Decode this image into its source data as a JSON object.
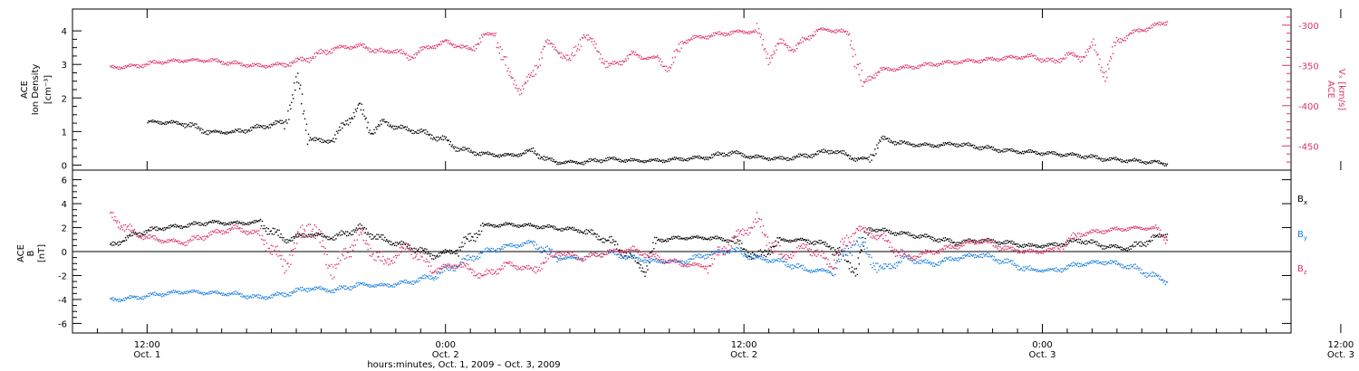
{
  "chart_data": [
    {
      "type": "scatter",
      "panel": "top",
      "left_axis": {
        "label_lines": [
          "ACE",
          "Ion Density"
        ],
        "unit": "[cm⁻³]",
        "ticks": [
          "0",
          "1",
          "2",
          "3",
          "4"
        ],
        "ylim": [
          -0.15,
          4.65
        ],
        "color": "#000000"
      },
      "right_axis": {
        "label_line1": "ACE",
        "label_line2": "Vₓ [km/s]",
        "ticks": [
          "-300",
          "-350",
          "-400",
          "-450"
        ],
        "ylim": [
          -480,
          -280
        ],
        "color": "#dd3366"
      },
      "series": [
        {
          "axis": "left",
          "color": "#000000",
          "points": [
            [
              3.0,
              1.3
            ],
            [
              4.0,
              1.3
            ],
            [
              6.0,
              1.25
            ],
            [
              8.0,
              1.0
            ],
            [
              10.0,
              1.0
            ],
            [
              12.0,
              1.15
            ],
            [
              14.0,
              1.3
            ],
            [
              15.0,
              2.5
            ],
            [
              16.0,
              0.85
            ],
            [
              17.0,
              0.7
            ],
            [
              18.0,
              0.8
            ],
            [
              19.0,
              1.3
            ],
            [
              20.0,
              1.75
            ],
            [
              21.0,
              1.0
            ],
            [
              22.0,
              1.3
            ],
            [
              23.0,
              1.15
            ],
            [
              25.0,
              1.0
            ],
            [
              27.0,
              0.75
            ],
            [
              28.0,
              0.5
            ],
            [
              30.0,
              0.35
            ],
            [
              32.0,
              0.3
            ],
            [
              33.0,
              0.35
            ],
            [
              34.0,
              0.45
            ],
            [
              35.0,
              0.2
            ],
            [
              36.0,
              0.1
            ],
            [
              38.0,
              0.1
            ],
            [
              40.0,
              0.2
            ],
            [
              42.0,
              0.15
            ],
            [
              44.0,
              0.15
            ],
            [
              46.0,
              0.2
            ],
            [
              48.0,
              0.25
            ],
            [
              50.0,
              0.4
            ],
            [
              51.0,
              0.3
            ],
            [
              52.0,
              0.25
            ],
            [
              54.0,
              0.2
            ],
            [
              56.0,
              0.3
            ],
            [
              58.0,
              0.45
            ],
            [
              59.0,
              0.35
            ],
            [
              60.0,
              0.2
            ],
            [
              61.0,
              0.2
            ],
            [
              62.0,
              0.8
            ],
            [
              64.0,
              0.65
            ],
            [
              66.0,
              0.6
            ],
            [
              68.0,
              0.65
            ],
            [
              70.0,
              0.55
            ],
            [
              72.0,
              0.45
            ],
            [
              74.0,
              0.4
            ],
            [
              76.0,
              0.35
            ],
            [
              78.0,
              0.3
            ],
            [
              80.0,
              0.2
            ],
            [
              82.0,
              0.15
            ],
            [
              84.0,
              0.1
            ],
            [
              85.0,
              0.05
            ]
          ]
        },
        {
          "axis": "right",
          "color": "#dd3366",
          "points": [
            [
              0.0,
              -352
            ],
            [
              2.0,
              -350
            ],
            [
              4.0,
              -345
            ],
            [
              6.0,
              -343
            ],
            [
              8.0,
              -343
            ],
            [
              10.0,
              -347
            ],
            [
              12.0,
              -350
            ],
            [
              14.0,
              -348
            ],
            [
              16.0,
              -340
            ],
            [
              18.0,
              -328
            ],
            [
              20.0,
              -325
            ],
            [
              22.0,
              -333
            ],
            [
              23.0,
              -330
            ],
            [
              24.0,
              -340
            ],
            [
              25.0,
              -330
            ],
            [
              26.0,
              -325
            ],
            [
              27.0,
              -320
            ],
            [
              28.0,
              -325
            ],
            [
              29.0,
              -330
            ],
            [
              30.0,
              -312
            ],
            [
              31.0,
              -310
            ],
            [
              32.0,
              -360
            ],
            [
              33.0,
              -380
            ],
            [
              34.0,
              -360
            ],
            [
              35.0,
              -320
            ],
            [
              36.0,
              -330
            ],
            [
              37.0,
              -345
            ],
            [
              38.0,
              -310
            ],
            [
              39.0,
              -325
            ],
            [
              40.0,
              -350
            ],
            [
              41.0,
              -345
            ],
            [
              42.0,
              -335
            ],
            [
              43.0,
              -340
            ],
            [
              44.0,
              -340
            ],
            [
              45.0,
              -355
            ],
            [
              46.0,
              -320
            ],
            [
              47.0,
              -315
            ],
            [
              48.0,
              -313
            ],
            [
              50.0,
              -308
            ],
            [
              52.0,
              -307
            ],
            [
              53.0,
              -340
            ],
            [
              54.0,
              -320
            ],
            [
              55.0,
              -330
            ],
            [
              56.0,
              -315
            ],
            [
              57.0,
              -305
            ],
            [
              58.0,
              -305
            ],
            [
              59.5,
              -310
            ],
            [
              60.5,
              -375
            ],
            [
              61.0,
              -365
            ],
            [
              62.0,
              -355
            ],
            [
              64.0,
              -352
            ],
            [
              66.0,
              -348
            ],
            [
              68.0,
              -345
            ],
            [
              70.0,
              -343
            ],
            [
              72.0,
              -340
            ],
            [
              74.0,
              -338
            ],
            [
              76.0,
              -345
            ],
            [
              77.0,
              -335
            ],
            [
              78.0,
              -340
            ],
            [
              79.0,
              -325
            ],
            [
              80.0,
              -360
            ],
            [
              81.0,
              -320
            ],
            [
              82.0,
              -310
            ],
            [
              83.0,
              -305
            ],
            [
              84.0,
              -300
            ],
            [
              85.0,
              -295
            ]
          ]
        }
      ],
      "xlim": [
        -3,
        95
      ]
    },
    {
      "type": "scatter",
      "panel": "bottom",
      "left_axis": {
        "label_line1": "ACE",
        "label_line2": "B",
        "unit": "[nT]",
        "ticks": [
          "-6",
          "-4",
          "-2",
          "0",
          "2",
          "4",
          "6"
        ],
        "ylim": [
          -6.8,
          6.8
        ],
        "color": "#000000"
      },
      "series": [
        {
          "name": "Bₓ",
          "color": "#000000",
          "points": [
            [
              0.0,
              0.5
            ],
            [
              1.0,
              1.0
            ],
            [
              2.0,
              1.5
            ],
            [
              4.0,
              2.0
            ],
            [
              6.0,
              2.2
            ],
            [
              8.0,
              2.5
            ],
            [
              10.0,
              2.4
            ],
            [
              12.0,
              2.5
            ],
            [
              14.0,
              1.0
            ],
            [
              16.0,
              1.5
            ],
            [
              18.0,
              1.2
            ],
            [
              20.0,
              2.0
            ],
            [
              22.0,
              1.0
            ],
            [
              24.0,
              0.5
            ],
            [
              26.0,
              -0.3
            ],
            [
              28.0,
              0.2
            ],
            [
              30.0,
              2.2
            ],
            [
              32.0,
              2.3
            ],
            [
              34.0,
              2.2
            ],
            [
              36.0,
              2.0
            ],
            [
              38.0,
              1.8
            ],
            [
              40.0,
              1.0
            ],
            [
              42.0,
              -0.5
            ],
            [
              43.0,
              -1.5
            ],
            [
              44.0,
              1.0
            ],
            [
              46.0,
              1.2
            ],
            [
              48.0,
              1.2
            ],
            [
              50.0,
              1.0
            ],
            [
              52.0,
              -0.5
            ],
            [
              54.0,
              1.0
            ],
            [
              56.0,
              1.0
            ],
            [
              58.0,
              0.5
            ],
            [
              60.0,
              -1.5
            ],
            [
              61.0,
              2.0
            ],
            [
              62.0,
              1.8
            ],
            [
              64.0,
              1.5
            ],
            [
              66.0,
              1.2
            ],
            [
              68.0,
              0.8
            ],
            [
              70.0,
              1.0
            ],
            [
              72.0,
              0.8
            ],
            [
              74.0,
              0.5
            ],
            [
              76.0,
              0.6
            ],
            [
              78.0,
              1.0
            ],
            [
              80.0,
              0.5
            ],
            [
              82.0,
              0.3
            ],
            [
              84.0,
              1.2
            ],
            [
              85.0,
              1.5
            ]
          ]
        },
        {
          "name": "Bᵧ",
          "color": "#1a7fdd",
          "points": [
            [
              0.0,
              -4.0
            ],
            [
              2.0,
              -3.8
            ],
            [
              4.0,
              -3.5
            ],
            [
              6.0,
              -3.3
            ],
            [
              8.0,
              -3.4
            ],
            [
              10.0,
              -3.5
            ],
            [
              12.0,
              -3.8
            ],
            [
              14.0,
              -3.5
            ],
            [
              16.0,
              -3.0
            ],
            [
              18.0,
              -3.2
            ],
            [
              20.0,
              -2.7
            ],
            [
              22.0,
              -2.8
            ],
            [
              24.0,
              -2.5
            ],
            [
              26.0,
              -2.0
            ],
            [
              28.0,
              -1.0
            ],
            [
              30.0,
              0.0
            ],
            [
              32.0,
              0.5
            ],
            [
              34.0,
              0.8
            ],
            [
              36.0,
              -0.5
            ],
            [
              38.0,
              -0.5
            ],
            [
              40.0,
              0.0
            ],
            [
              42.0,
              -0.5
            ],
            [
              44.0,
              -0.8
            ],
            [
              46.0,
              -0.8
            ],
            [
              48.0,
              -0.2
            ],
            [
              50.0,
              0.2
            ],
            [
              52.0,
              -0.5
            ],
            [
              54.0,
              -0.8
            ],
            [
              56.0,
              -1.5
            ],
            [
              58.0,
              -1.6
            ],
            [
              60.0,
              1.0
            ],
            [
              62.0,
              -1.5
            ],
            [
              64.0,
              -0.5
            ],
            [
              66.0,
              -1.0
            ],
            [
              68.0,
              -0.5
            ],
            [
              70.0,
              -0.2
            ],
            [
              72.0,
              -0.8
            ],
            [
              74.0,
              -1.5
            ],
            [
              76.0,
              -1.5
            ],
            [
              78.0,
              -1.0
            ],
            [
              80.0,
              -0.8
            ],
            [
              82.0,
              -1.2
            ],
            [
              84.0,
              -2.0
            ],
            [
              85.0,
              -2.5
            ]
          ]
        },
        {
          "name": "Bᶻ",
          "color": "#dd3366",
          "points": [
            [
              0.0,
              3.0
            ],
            [
              2.0,
              1.5
            ],
            [
              4.0,
              1.0
            ],
            [
              6.0,
              0.8
            ],
            [
              8.0,
              1.5
            ],
            [
              10.0,
              2.0
            ],
            [
              12.0,
              1.5
            ],
            [
              14.0,
              -1.0
            ],
            [
              16.0,
              2.5
            ],
            [
              18.0,
              -1.5
            ],
            [
              20.0,
              1.5
            ],
            [
              22.0,
              -1.0
            ],
            [
              24.0,
              0.5
            ],
            [
              26.0,
              -1.5
            ],
            [
              28.0,
              -1.0
            ],
            [
              30.0,
              -2.0
            ],
            [
              32.0,
              -1.0
            ],
            [
              34.0,
              -1.5
            ],
            [
              36.0,
              0.0
            ],
            [
              38.0,
              -0.5
            ],
            [
              40.0,
              0.0
            ],
            [
              42.0,
              0.2
            ],
            [
              44.0,
              -0.5
            ],
            [
              46.0,
              -1.0
            ],
            [
              48.0,
              -1.2
            ],
            [
              50.0,
              1.0
            ],
            [
              52.0,
              2.5
            ],
            [
              54.0,
              -0.5
            ],
            [
              56.0,
              0.5
            ],
            [
              58.0,
              -1.0
            ],
            [
              60.0,
              2.0
            ],
            [
              62.0,
              1.2
            ],
            [
              64.0,
              -0.5
            ],
            [
              66.0,
              0.0
            ],
            [
              68.0,
              0.5
            ],
            [
              70.0,
              1.0
            ],
            [
              72.0,
              0.3
            ],
            [
              74.0,
              0.0
            ],
            [
              76.0,
              0.2
            ],
            [
              78.0,
              1.5
            ],
            [
              80.0,
              1.8
            ],
            [
              82.0,
              2.0
            ],
            [
              84.0,
              2.0
            ],
            [
              85.0,
              1.0
            ]
          ]
        }
      ],
      "xlim": [
        -3,
        95
      ]
    }
  ],
  "x_axis": {
    "ticks": [
      {
        "time": "12:00",
        "date": "Oct. 1",
        "hours": 3
      },
      {
        "time": "0:00",
        "date": "Oct. 2",
        "hours": 27
      },
      {
        "time": "12:00",
        "date": "Oct. 2",
        "hours": 51
      },
      {
        "time": "0:00",
        "date": "Oct. 3",
        "hours": 75
      },
      {
        "time": "12:00",
        "date": "Oct. 3",
        "hours": 99
      }
    ],
    "label": "hours:minutes, Oct.  1, 2009 – Oct.  3, 2009"
  },
  "legend": [
    {
      "base": "B",
      "sub": "x",
      "color": "#000000"
    },
    {
      "base": "B",
      "sub": "y",
      "color": "#1a7fdd"
    },
    {
      "base": "B",
      "sub": "z",
      "color": "#dd3366"
    }
  ]
}
